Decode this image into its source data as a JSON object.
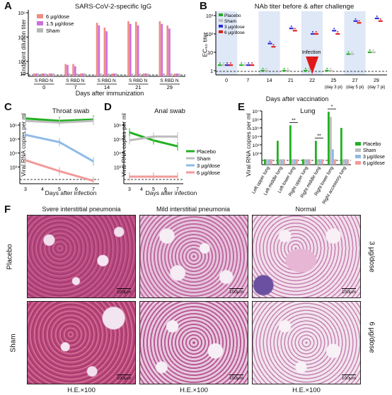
{
  "panels": {
    "A": {
      "letter": "A",
      "title": "SARS-CoV-2-specific IgG",
      "ylabel": "Endpoint dilution titer",
      "xlabel": "Days after immunization",
      "legend": [
        "6 μg/dose",
        "1.5 μg/dose",
        "Sham"
      ],
      "colors": {
        "6 μg/dose": "#f08c84",
        "1.5 μg/dose": "#cc6fe0",
        "Sham": "#b8b8b8"
      },
      "yticks": [
        "10",
        "10²",
        "10⁴",
        "10⁶"
      ],
      "groups": [
        "0",
        "7",
        "14",
        "21",
        "29"
      ],
      "bar_labels": [
        "S",
        "RBD",
        "N"
      ]
    },
    "B": {
      "letter": "B",
      "title": "NAb titer before & after challenge",
      "ylabel": "EC₅₀ titer",
      "xlabel": "Days after vaccination",
      "legend": [
        "Placebo",
        "Sham",
        "3 μg/dose",
        "6 μg/dose"
      ],
      "colors": {
        "Placebo": "#22b022",
        "Sham": "#bcbcbc",
        "3 μg/dose": "#2a2ad8",
        "6 μg/dose": "#e02020"
      },
      "yticks": [
        "1",
        "10",
        "10²",
        "10³"
      ],
      "xticks": [
        "0",
        "7",
        "14",
        "21",
        "22",
        "25",
        "27",
        "29"
      ],
      "xsub": [
        "(day 3 pi)",
        "(day 5 pi)",
        "(day 7 pi)"
      ],
      "annotation": "Infection"
    },
    "C": {
      "letter": "C",
      "title": "Throat swab",
      "ylabel": "Viral RNA copies per ml",
      "xlabel": "Days after infection",
      "xticks": [
        "3",
        "4",
        "5",
        "6",
        "7"
      ],
      "yticks": [
        "10³",
        "10⁴",
        "10⁵",
        "10⁶"
      ]
    },
    "D": {
      "letter": "D",
      "title": "Anal swab",
      "ylabel": "Viral RNA copies per ml",
      "xlabel": "Days after infection",
      "xticks": [
        "3",
        "4",
        "5",
        "6",
        "7"
      ],
      "yticks": [
        "10³",
        "10⁴",
        "10⁵",
        "10⁶"
      ],
      "legend": [
        "Placebo",
        "Sham",
        "3 μg/dose",
        "6 μg/dose"
      ]
    },
    "E": {
      "letter": "E",
      "title": "Lung",
      "ylabel": "Viral RNA copies per ml",
      "yticks": [
        "10²",
        "10³",
        "10⁴",
        "10⁵",
        "10⁶",
        "10⁷"
      ],
      "categories": [
        "Left upper lung",
        "Left middle lung",
        "Left lower lung",
        "Right upper lung",
        "Right middle lung",
        "Right lower lung",
        "Right accessory lung"
      ],
      "legend": [
        "Placebo",
        "Sham",
        "3 μg/dose",
        "6 μg/dose"
      ],
      "significance": [
        "**",
        "**",
        "*"
      ]
    },
    "F": {
      "letter": "F",
      "col_titles": [
        "Svere interstitial pneumonia",
        "Mild interstitial pneumonia",
        "Normal"
      ],
      "row_left": [
        "Placebo",
        "Sham"
      ],
      "row_right": [
        "3 μg/dose",
        "6 μg/dose"
      ],
      "bottom": [
        "H.E.×100",
        "H.E.×100",
        "H.E.×100"
      ],
      "scale": "100μm"
    }
  },
  "chart_data": [
    {
      "type": "bar",
      "title": "SARS-CoV-2-specific IgG",
      "ylabel": "Endpoint dilution titer",
      "xlabel": "Days after immunization",
      "yscale": "log",
      "ylim": [
        10,
        1000000
      ],
      "groups": [
        "0",
        "7",
        "14",
        "21",
        "29"
      ],
      "categories": [
        "S",
        "RBD",
        "N"
      ],
      "series": [
        {
          "name": "6 μg/dose",
          "values": [
            [
              10,
              10,
              10
            ],
            [
              60,
              60,
              10
            ],
            [
              150000,
              60000,
              10
            ],
            [
              200000,
              180000,
              10
            ],
            [
              200000,
              90000,
              10
            ]
          ]
        },
        {
          "name": "1.5 μg/dose",
          "values": [
            [
              10,
              10,
              10
            ],
            [
              50,
              40,
              10
            ],
            [
              90000,
              30000,
              10
            ],
            [
              120000,
              90000,
              10
            ],
            [
              120000,
              50000,
              10
            ]
          ]
        },
        {
          "name": "Sham",
          "values": [
            [
              10,
              10,
              10
            ],
            [
              10,
              10,
              10
            ],
            [
              10,
              10,
              10
            ],
            [
              10,
              10,
              10
            ],
            [
              10,
              10,
              10
            ]
          ]
        }
      ]
    },
    {
      "type": "scatter",
      "title": "NAb titer before & after challenge",
      "ylabel": "EC₅₀ titer",
      "xlabel": "Days after vaccination",
      "yscale": "log",
      "ylim": [
        1,
        1000
      ],
      "x": [
        "0",
        "7",
        "14",
        "21",
        "22",
        "25",
        "27",
        "29"
      ],
      "series": [
        {
          "name": "Placebo",
          "values": [
            2,
            2,
            1,
            1,
            1,
            1,
            8,
            10
          ]
        },
        {
          "name": "Sham",
          "values": [
            2,
            2,
            1,
            1,
            1,
            1,
            8,
            10
          ]
        },
        {
          "name": "3 μg/dose",
          "values": [
            2,
            2,
            30,
            200,
            100,
            150,
            500,
            700
          ]
        },
        {
          "name": "6 μg/dose",
          "values": [
            2,
            2,
            20,
            150,
            100,
            100,
            400,
            500
          ]
        }
      ]
    },
    {
      "type": "line",
      "title": "Throat swab",
      "ylabel": "Viral RNA copies per ml",
      "xlabel": "Days after infection",
      "yscale": "log",
      "ylim": [
        100,
        1000000
      ],
      "x": [
        3,
        5,
        7
      ],
      "series": [
        {
          "name": "Placebo",
          "values": [
            3000000,
            2000000,
            2500000
          ]
        },
        {
          "name": "Sham",
          "values": [
            2000000,
            1500000,
            2000000
          ]
        },
        {
          "name": "3 μg/dose",
          "values": [
            200000,
            60000,
            2500
          ]
        },
        {
          "name": "6 μg/dose",
          "values": [
            3000,
            500,
            100
          ]
        }
      ]
    },
    {
      "type": "line",
      "title": "Anal swab",
      "ylabel": "Viral RNA copies per ml",
      "xlabel": "Days after infection",
      "yscale": "log",
      "ylim": [
        100,
        1000000
      ],
      "x": [
        3,
        5,
        7
      ],
      "series": [
        {
          "name": "Placebo",
          "values": [
            300000,
            80000,
            30000
          ]
        },
        {
          "name": "Sham",
          "values": [
            80000,
            150000,
            150000
          ]
        },
        {
          "name": "3 μg/dose",
          "values": [
            200,
            200,
            200
          ]
        },
        {
          "name": "6 μg/dose",
          "values": [
            200,
            200,
            200
          ]
        }
      ]
    },
    {
      "type": "bar",
      "title": "Lung",
      "ylabel": "Viral RNA copies per ml",
      "yscale": "log",
      "ylim": [
        10,
        10000000
      ],
      "categories": [
        "Left upper lung",
        "Left middle lung",
        "Left lower lung",
        "Right upper lung",
        "Right middle lung",
        "Right lower lung",
        "Right accessory lung"
      ],
      "series": [
        {
          "name": "Placebo",
          "values": [
            20,
            3000,
            200000,
            20,
            3000,
            8000000,
            100000
          ]
        },
        {
          "name": "Sham",
          "values": [
            20,
            20,
            20,
            20,
            20,
            2000000,
            20
          ]
        },
        {
          "name": "3 μg/dose",
          "values": [
            20,
            20,
            20,
            20,
            20,
            300,
            20
          ]
        },
        {
          "name": "6 μg/dose",
          "values": [
            20,
            20,
            20,
            20,
            20,
            20,
            20
          ]
        }
      ]
    }
  ]
}
